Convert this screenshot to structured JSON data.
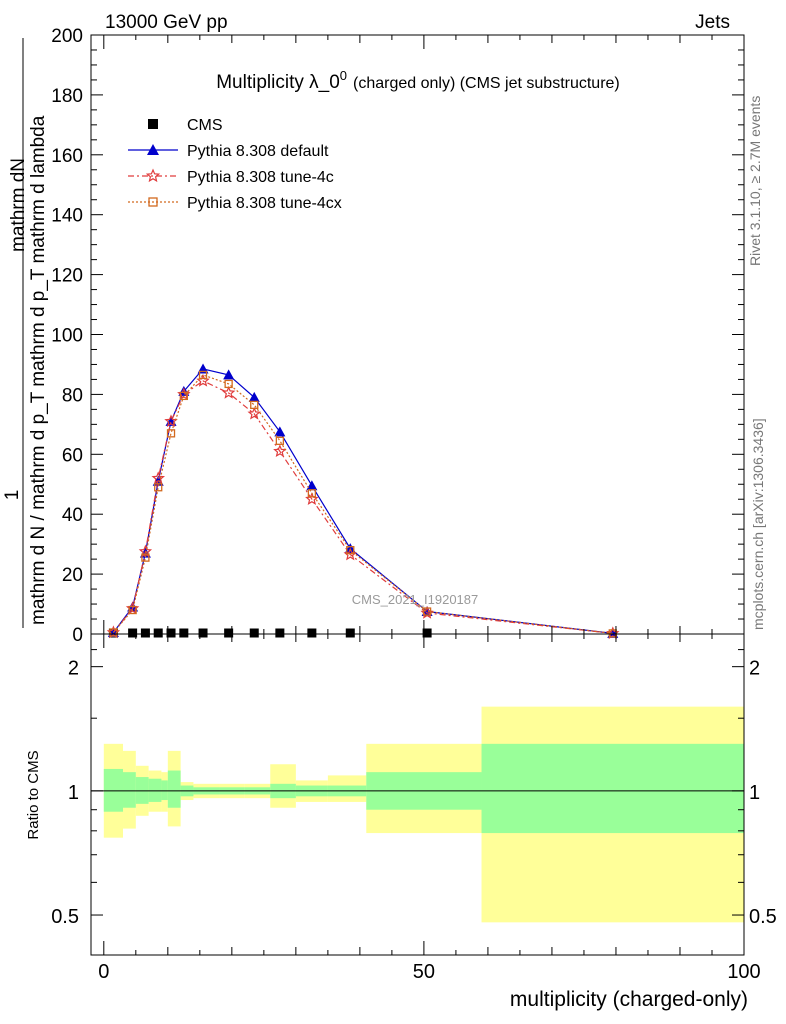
{
  "header": {
    "left": "13000 GeV pp",
    "right": "Jets"
  },
  "side": {
    "rivet": "Rivet 3.1.10, ≥ 2.7M events",
    "mcplots": "mcplots.cern.ch [arXiv:1306.3436]"
  },
  "watermark": "CMS_2021_I1920187",
  "chart_data": [
    {
      "type": "line",
      "title_main": "Multiplicity λ_0",
      "title_sup": "0",
      "title_small": "(charged only) (CMS jet substructure)",
      "ylabel_numer": "1",
      "ylabel_denom": "mathrm d N / mathrm d p_T mathrm d p_T mathrm d lambda",
      "ylabel_top": "mathrm dN",
      "ylim": [
        0,
        200
      ],
      "yticks": [
        0,
        20,
        40,
        60,
        80,
        100,
        120,
        140,
        160,
        180,
        200
      ],
      "xlim": [
        -2,
        100
      ],
      "grid": false,
      "legend_position": "top-left",
      "series": [
        {
          "name": "CMS",
          "marker": "square",
          "color": "#000000",
          "x": [
            1.5,
            4.5,
            6.5,
            8.5,
            10.5,
            12.5,
            15.5,
            19.5,
            23.5,
            27.5,
            32.5,
            38.5,
            50.5
          ],
          "y": [
            0,
            0,
            0,
            0,
            0,
            0,
            0,
            0,
            0,
            0,
            0,
            0,
            0
          ]
        },
        {
          "name": "Pythia 8.308 default",
          "marker": "triangle",
          "color": "#0000cc",
          "x": [
            1.5,
            4.5,
            6.5,
            8.5,
            10.5,
            12.5,
            15.5,
            19.5,
            23.5,
            27.5,
            32.5,
            38.5,
            50.5,
            79.5
          ],
          "y": [
            0.5,
            9,
            27,
            51,
            71,
            81,
            88.5,
            86.5,
            79,
            67.5,
            49.5,
            28.5,
            7.5,
            0.2
          ]
        },
        {
          "name": "Pythia 8.308 tune-4c",
          "marker": "star",
          "color": "#e03c3c",
          "x": [
            1.5,
            4.5,
            6.5,
            8.5,
            10.5,
            12.5,
            15.5,
            19.5,
            23.5,
            27.5,
            32.5,
            38.5,
            50.5,
            79.5
          ],
          "y": [
            0.5,
            8.5,
            27.5,
            52,
            71,
            80,
            84.5,
            80.5,
            73.5,
            61,
            45,
            26.5,
            7,
            0.2
          ]
        },
        {
          "name": "Pythia 8.308 tune-4cx",
          "marker": "open-square",
          "color": "#d2691e",
          "x": [
            1.5,
            4.5,
            6.5,
            8.5,
            10.5,
            12.5,
            15.5,
            19.5,
            23.5,
            27.5,
            32.5,
            38.5,
            50.5,
            79.5
          ],
          "y": [
            0.5,
            8,
            25.5,
            49,
            67,
            79.5,
            86.5,
            83.5,
            76.5,
            64.5,
            47,
            28,
            7.5,
            0.2
          ]
        }
      ]
    },
    {
      "type": "area",
      "ylabel": "Ratio to CMS",
      "xlabel": "multiplicity (charged-only)",
      "xlim": [
        -2,
        100
      ],
      "ylim": [
        0.4,
        2.4
      ],
      "log_y": true,
      "xticks": [
        0,
        50,
        100
      ],
      "yticks": [
        0.5,
        1,
        2
      ],
      "reference_line": 1,
      "bands": {
        "edges": [
          0,
          3,
          5,
          7,
          9,
          10,
          12,
          14,
          18,
          22,
          26,
          30,
          35,
          41,
          59,
          100
        ],
        "inner_color": "#99ff99",
        "outer_color": "#ffff99",
        "inner_lo": [
          0.89,
          0.91,
          0.93,
          0.94,
          0.95,
          0.91,
          0.97,
          0.98,
          0.98,
          0.98,
          0.96,
          0.97,
          0.97,
          0.9,
          0.79
        ],
        "inner_hi": [
          1.13,
          1.11,
          1.08,
          1.07,
          1.06,
          1.12,
          1.03,
          1.02,
          1.02,
          1.02,
          1.04,
          1.03,
          1.03,
          1.11,
          1.3
        ],
        "outer_lo": [
          0.77,
          0.81,
          0.87,
          0.89,
          0.89,
          0.82,
          0.95,
          0.96,
          0.96,
          0.96,
          0.91,
          0.94,
          0.94,
          0.79,
          0.48
        ],
        "outer_hi": [
          1.3,
          1.25,
          1.15,
          1.12,
          1.11,
          1.25,
          1.05,
          1.04,
          1.04,
          1.04,
          1.16,
          1.06,
          1.09,
          1.3,
          1.6
        ]
      }
    }
  ]
}
